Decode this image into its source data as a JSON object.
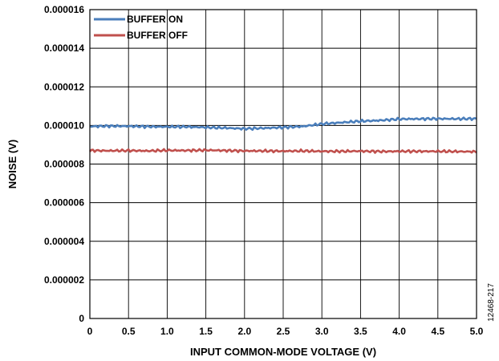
{
  "chart_data": {
    "type": "line",
    "xlabel": "INPUT COMMON-MODE VOLTAGE (V)",
    "ylabel": "NOISE (V)",
    "xlim": [
      0,
      5.0
    ],
    "ylim": [
      0,
      1.6e-05
    ],
    "xticks": [
      0,
      0.5,
      1.0,
      1.5,
      2.0,
      2.5,
      3.0,
      3.5,
      4.0,
      4.5,
      5.0
    ],
    "xtick_labels": [
      "0",
      "0.5",
      "1.0",
      "1.5",
      "2.0",
      "2.5",
      "3.0",
      "3.5",
      "4.0",
      "4.5",
      "5.0"
    ],
    "yticks": [
      0,
      2e-06,
      4e-06,
      6e-06,
      8e-06,
      1e-05,
      1.2e-05,
      1.4e-05,
      1.6e-05
    ],
    "ytick_labels": [
      "0",
      "0.000002",
      "0.000004",
      "0.000006",
      "0.000008",
      "0.000010",
      "0.000012",
      "0.000014",
      "0.000016"
    ],
    "grid": true,
    "legend_position": "top-left",
    "figure_id": "12468-217",
    "series": [
      {
        "name": "BUFFER ON",
        "color": "#4a7ebb",
        "x": [
          0,
          0.25,
          0.5,
          0.75,
          1.0,
          1.25,
          1.5,
          1.75,
          2.0,
          2.25,
          2.5,
          2.75,
          3.0,
          3.25,
          3.5,
          3.75,
          4.0,
          4.25,
          4.5,
          4.75,
          5.0
        ],
        "y": [
          9.95e-06,
          9.97e-06,
          9.96e-06,
          9.94e-06,
          9.93e-06,
          9.93e-06,
          9.9e-06,
          9.87e-06,
          9.83e-06,
          9.86e-06,
          9.9e-06,
          9.95e-06,
          1.008e-05,
          1.015e-05,
          1.022e-05,
          1.026e-05,
          1.033e-05,
          1.034e-05,
          1.035e-05,
          1.034e-05,
          1.035e-05
        ]
      },
      {
        "name": "BUFFER OFF",
        "color": "#c0504d",
        "x": [
          0,
          0.25,
          0.5,
          0.75,
          1.0,
          1.25,
          1.5,
          1.75,
          2.0,
          2.25,
          2.5,
          2.75,
          3.0,
          3.25,
          3.5,
          3.75,
          4.0,
          4.25,
          4.5,
          4.75,
          5.0
        ],
        "y": [
          8.7e-06,
          8.69e-06,
          8.7e-06,
          8.68e-06,
          8.71e-06,
          8.7e-06,
          8.72e-06,
          8.7e-06,
          8.68e-06,
          8.68e-06,
          8.67e-06,
          8.68e-06,
          8.66e-06,
          8.66e-06,
          8.67e-06,
          8.65e-06,
          8.66e-06,
          8.66e-06,
          8.66e-06,
          8.65e-06,
          8.64e-06
        ]
      }
    ]
  }
}
